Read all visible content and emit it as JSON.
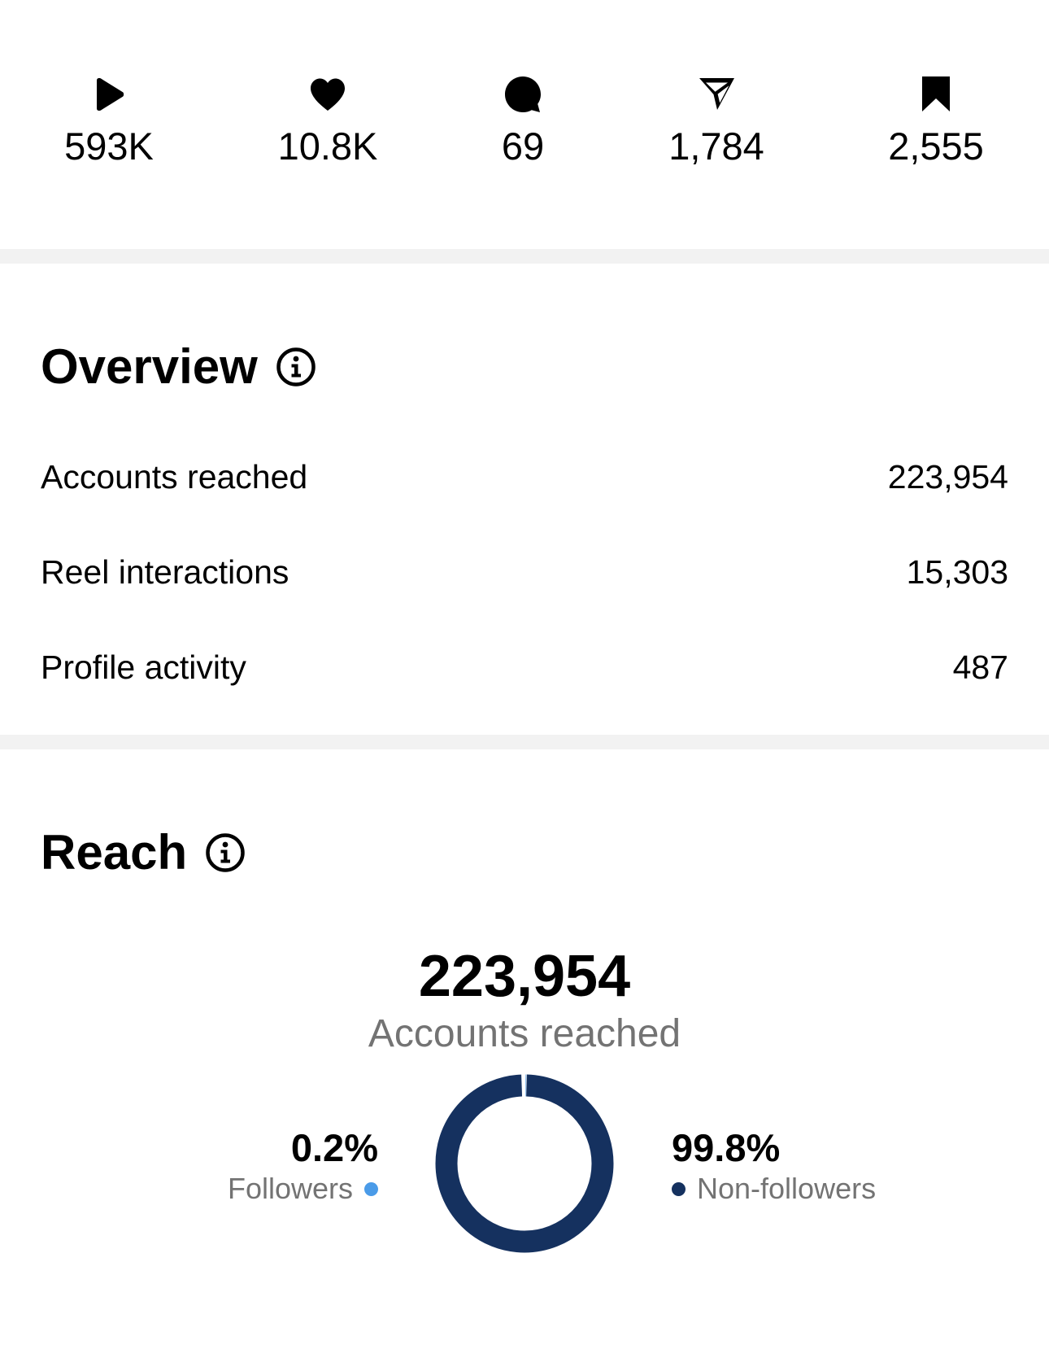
{
  "stats": [
    {
      "icon": "play-icon",
      "value": "593K"
    },
    {
      "icon": "heart-icon",
      "value": "10.8K"
    },
    {
      "icon": "comment-icon",
      "value": "69"
    },
    {
      "icon": "share-icon",
      "value": "1,784"
    },
    {
      "icon": "bookmark-icon",
      "value": "2,555"
    }
  ],
  "overview": {
    "title": "Overview",
    "rows": [
      {
        "label": "Accounts reached",
        "value": "223,954"
      },
      {
        "label": "Reel interactions",
        "value": "15,303"
      },
      {
        "label": "Profile activity",
        "value": "487"
      }
    ]
  },
  "reach": {
    "title": "Reach",
    "total": "223,954",
    "caption": "Accounts reached",
    "followers": {
      "percent": "0.2%",
      "label": "Followers",
      "fraction": 0.002
    },
    "non_followers": {
      "percent": "99.8%",
      "label": "Non-followers",
      "fraction": 0.998
    }
  },
  "colors": {
    "followers": "#4a9be8",
    "non_followers": "#15315f",
    "divider": "#f2f2f2",
    "muted_text": "#737373"
  }
}
